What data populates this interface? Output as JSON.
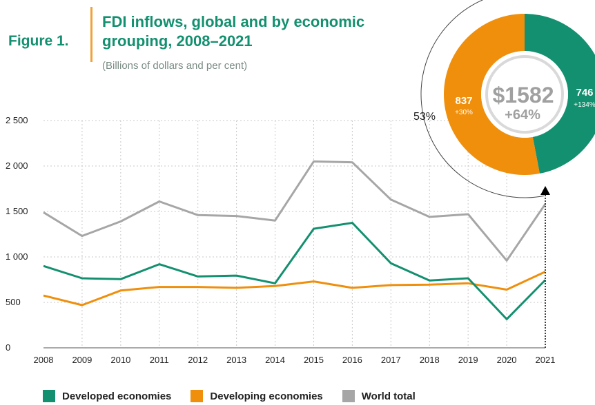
{
  "header": {
    "figure_label": "Figure 1.",
    "title": "FDI inflows, global and by economic grouping, 2008–2021",
    "subtitle": "(Billions of dollars and per cent)"
  },
  "donut": {
    "total_label": "$1582",
    "total_change": "+64%",
    "developing_value": "837",
    "developing_change": "+30%",
    "developed_value": "746",
    "developed_change": "+134%",
    "share_label": "53%",
    "developing_share": 53,
    "developed_share": 47
  },
  "colors": {
    "developed": "#13906f",
    "developing": "#ef8f0c",
    "world": "#a6a6a6",
    "title": "#13906f"
  },
  "chart_data": {
    "type": "line",
    "x": [
      "2008",
      "2009",
      "2010",
      "2011",
      "2012",
      "2013",
      "2014",
      "2015",
      "2016",
      "2017",
      "2018",
      "2019",
      "2020",
      "2021"
    ],
    "series": [
      {
        "name": "Developed economies",
        "values": [
          900,
          765,
          755,
          920,
          785,
          795,
          710,
          1310,
          1375,
          930,
          740,
          765,
          315,
          746
        ]
      },
      {
        "name": "Developing economies",
        "values": [
          575,
          470,
          630,
          670,
          670,
          660,
          680,
          730,
          660,
          690,
          695,
          710,
          640,
          837
        ]
      },
      {
        "name": "World total",
        "values": [
          1490,
          1230,
          1390,
          1610,
          1460,
          1450,
          1400,
          2050,
          2040,
          1630,
          1440,
          1470,
          960,
          1582
        ]
      }
    ],
    "yticks": [
      "0",
      "500",
      "1 000",
      "1 500",
      "2 000",
      "2 500"
    ],
    "ylim": [
      0,
      2500
    ],
    "grid": true,
    "legend_position": "bottom"
  }
}
